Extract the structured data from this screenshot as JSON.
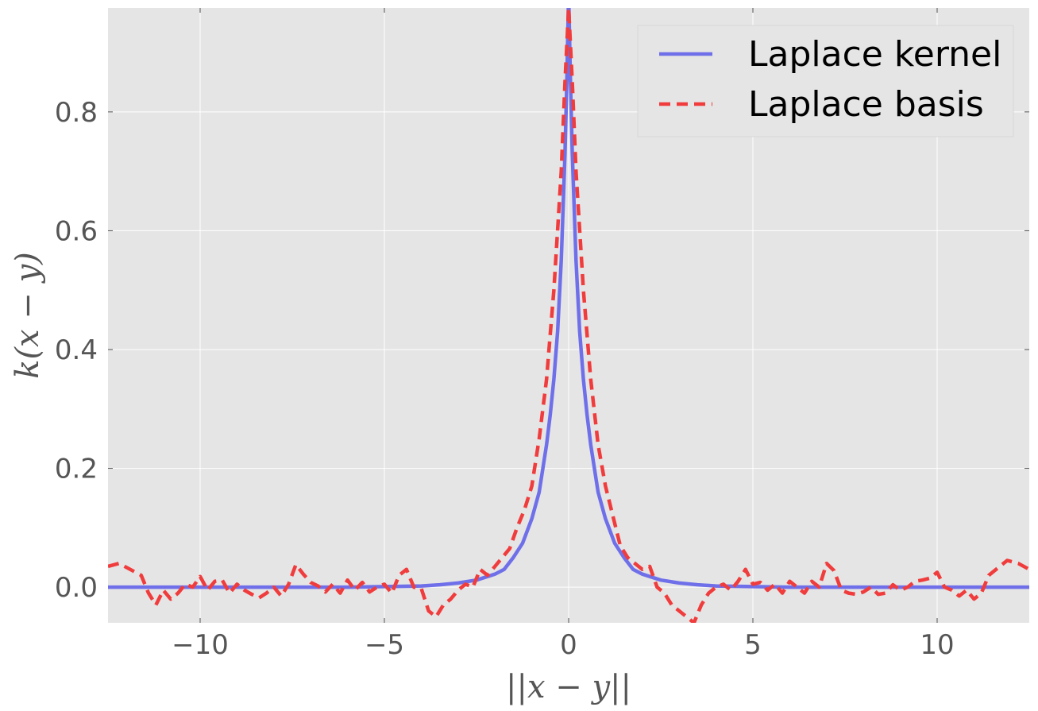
{
  "chart_data": {
    "type": "line",
    "title": "",
    "xlabel": "||x − y||",
    "ylabel": "k(x − y)",
    "xlim": [
      -12.5,
      12.5
    ],
    "ylim": [
      -0.06,
      0.975
    ],
    "x_ticks": [
      -10,
      -5,
      0,
      5,
      10
    ],
    "x_tick_labels": [
      "−10",
      "−5",
      "0",
      "5",
      "10"
    ],
    "y_ticks": [
      0.0,
      0.2,
      0.4,
      0.6,
      0.8
    ],
    "y_tick_labels": [
      "0.0",
      "0.2",
      "0.4",
      "0.6",
      "0.8"
    ],
    "grid": true,
    "legend_position": "top-right",
    "background_color": "#e5e5e5",
    "series": [
      {
        "name": "Laplace kernel",
        "style": "solid",
        "color": "#6f70e9",
        "formula": "exp(-|x|) / 2 (peak 1.0 at x = 0)",
        "x": [
          -12.5,
          -10,
          -8,
          -6,
          -5,
          -4,
          -3.5,
          -3,
          -2.5,
          -2,
          -1.75,
          -1.5,
          -1.25,
          -1,
          -0.8,
          -0.6,
          -0.5,
          -0.4,
          -0.3,
          -0.2,
          -0.1,
          -0.05,
          0,
          0.05,
          0.1,
          0.2,
          0.3,
          0.4,
          0.5,
          0.6,
          0.8,
          1,
          1.25,
          1.5,
          1.75,
          2,
          2.5,
          3,
          3.5,
          4,
          5,
          6,
          8,
          10,
          12.5
        ],
        "y": [
          0.0,
          0.0,
          0.0,
          0.0,
          0.001,
          0.002,
          0.004,
          0.007,
          0.012,
          0.022,
          0.03,
          0.05,
          0.074,
          0.115,
          0.16,
          0.24,
          0.29,
          0.35,
          0.43,
          0.55,
          0.73,
          0.85,
          1.0,
          0.85,
          0.73,
          0.55,
          0.43,
          0.35,
          0.29,
          0.24,
          0.16,
          0.115,
          0.074,
          0.05,
          0.03,
          0.022,
          0.012,
          0.007,
          0.004,
          0.002,
          0.001,
          0.0,
          0.0,
          0.0,
          0.0
        ]
      },
      {
        "name": "Laplace basis",
        "style": "dashed",
        "color": "#f03c3c",
        "x": [
          -12.5,
          -12.2,
          -11.9,
          -11.6,
          -11.4,
          -11.2,
          -11.0,
          -10.8,
          -10.6,
          -10.4,
          -10.2,
          -10.0,
          -9.8,
          -9.6,
          -9.4,
          -9.2,
          -9.0,
          -8.8,
          -8.6,
          -8.4,
          -8.2,
          -8.0,
          -7.8,
          -7.6,
          -7.4,
          -7.2,
          -7.0,
          -6.8,
          -6.6,
          -6.4,
          -6.2,
          -6.0,
          -5.8,
          -5.6,
          -5.4,
          -5.2,
          -5.0,
          -4.8,
          -4.6,
          -4.4,
          -4.2,
          -4.0,
          -3.8,
          -3.6,
          -3.4,
          -3.2,
          -3.0,
          -2.8,
          -2.6,
          -2.4,
          -2.2,
          -2.0,
          -1.8,
          -1.6,
          -1.4,
          -1.2,
          -1.0,
          -0.8,
          -0.6,
          -0.4,
          -0.2,
          -0.1,
          0,
          0.1,
          0.2,
          0.4,
          0.6,
          0.8,
          1.0,
          1.2,
          1.4,
          1.6,
          1.8,
          2.0,
          2.2,
          2.4,
          2.6,
          2.8,
          3.0,
          3.2,
          3.4,
          3.6,
          3.8,
          4.0,
          4.2,
          4.4,
          4.6,
          4.8,
          5.0,
          5.2,
          5.4,
          5.6,
          5.8,
          6.0,
          6.2,
          6.4,
          6.6,
          6.8,
          7.0,
          7.2,
          7.4,
          7.6,
          7.8,
          8.0,
          8.2,
          8.4,
          8.6,
          8.8,
          9.0,
          9.2,
          9.4,
          9.6,
          9.8,
          10.0,
          10.2,
          10.4,
          10.6,
          10.8,
          11.0,
          11.2,
          11.4,
          11.6,
          11.9,
          12.2,
          12.5
        ],
        "y": [
          0.035,
          0.04,
          0.03,
          0.02,
          -0.01,
          -0.03,
          -0.005,
          -0.02,
          -0.01,
          0.005,
          0.0,
          0.018,
          -0.005,
          0.01,
          0.012,
          -0.01,
          0.005,
          -0.005,
          -0.012,
          -0.018,
          -0.01,
          0.0,
          -0.015,
          0.005,
          0.038,
          0.022,
          0.008,
          0.002,
          -0.008,
          0.005,
          -0.01,
          0.012,
          -0.005,
          0.008,
          -0.008,
          0.0,
          0.005,
          -0.01,
          0.02,
          0.03,
          0.0,
          -0.002,
          -0.04,
          -0.05,
          -0.03,
          -0.02,
          -0.005,
          0.005,
          0.0,
          0.03,
          0.02,
          0.035,
          0.05,
          0.065,
          0.1,
          0.13,
          0.17,
          0.25,
          0.35,
          0.5,
          0.7,
          0.85,
          0.975,
          0.85,
          0.7,
          0.5,
          0.35,
          0.24,
          0.17,
          0.12,
          0.07,
          0.05,
          0.04,
          0.03,
          0.035,
          0.0,
          -0.01,
          -0.03,
          -0.04,
          -0.05,
          -0.06,
          -0.03,
          -0.01,
          0.0,
          0.005,
          -0.005,
          0.01,
          0.03,
          0.005,
          0.008,
          -0.005,
          0.005,
          -0.01,
          0.01,
          0.0,
          -0.01,
          0.01,
          0.0,
          0.04,
          0.028,
          -0.005,
          -0.01,
          -0.012,
          -0.008,
          0.0,
          -0.012,
          -0.01,
          0.004,
          -0.005,
          0.0,
          0.01,
          0.012,
          0.015,
          0.025,
          0.0,
          -0.005,
          -0.015,
          -0.005,
          -0.02,
          -0.01,
          0.02,
          0.03,
          0.045,
          0.04,
          0.03
        ]
      }
    ]
  }
}
